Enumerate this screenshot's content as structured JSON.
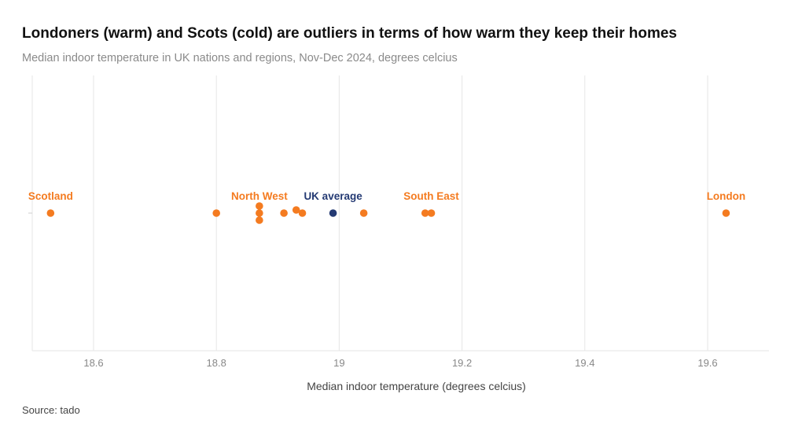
{
  "title": "Londoners (warm) and Scots (cold) are outliers in terms of how warm they keep their homes",
  "subtitle": "Median indoor temperature in UK nations and regions, Nov-Dec 2024, degrees celcius",
  "source": "Source: tado",
  "colors": {
    "region": "#f47b20",
    "average": "#243a73",
    "grid": "#e6e6e6"
  },
  "chart_data": {
    "type": "scatter",
    "title": "Londoners (warm) and Scots (cold) are outliers in terms of how warm they keep their homes",
    "subtitle": "Median indoor temperature in UK nations and regions, Nov-Dec 2024, degrees celcius",
    "xlabel": "Median indoor temperature (degrees celcius)",
    "ylabel": "",
    "xlim": [
      18.5,
      19.7
    ],
    "x_ticks": [
      18.6,
      18.8,
      19,
      19.2,
      19.4,
      19.6
    ],
    "x_tick_labels": [
      "18.6",
      "18.8",
      "19",
      "19.2",
      "19.4",
      "19.6"
    ],
    "grid": true,
    "points": [
      {
        "x": 18.53,
        "label": "Scotland",
        "kind": "region"
      },
      {
        "x": 18.8,
        "label": "",
        "kind": "region"
      },
      {
        "x": 18.87,
        "label": "North West",
        "kind": "region"
      },
      {
        "x": 18.87,
        "label": "",
        "kind": "region"
      },
      {
        "x": 18.87,
        "label": "",
        "kind": "region"
      },
      {
        "x": 18.91,
        "label": "",
        "kind": "region"
      },
      {
        "x": 18.93,
        "label": "",
        "kind": "region"
      },
      {
        "x": 18.94,
        "label": "",
        "kind": "region"
      },
      {
        "x": 18.99,
        "label": "UK average",
        "kind": "average"
      },
      {
        "x": 19.04,
        "label": "",
        "kind": "region"
      },
      {
        "x": 19.14,
        "label": "",
        "kind": "region"
      },
      {
        "x": 19.15,
        "label": "South East",
        "kind": "region"
      },
      {
        "x": 19.63,
        "label": "London",
        "kind": "region"
      }
    ]
  }
}
